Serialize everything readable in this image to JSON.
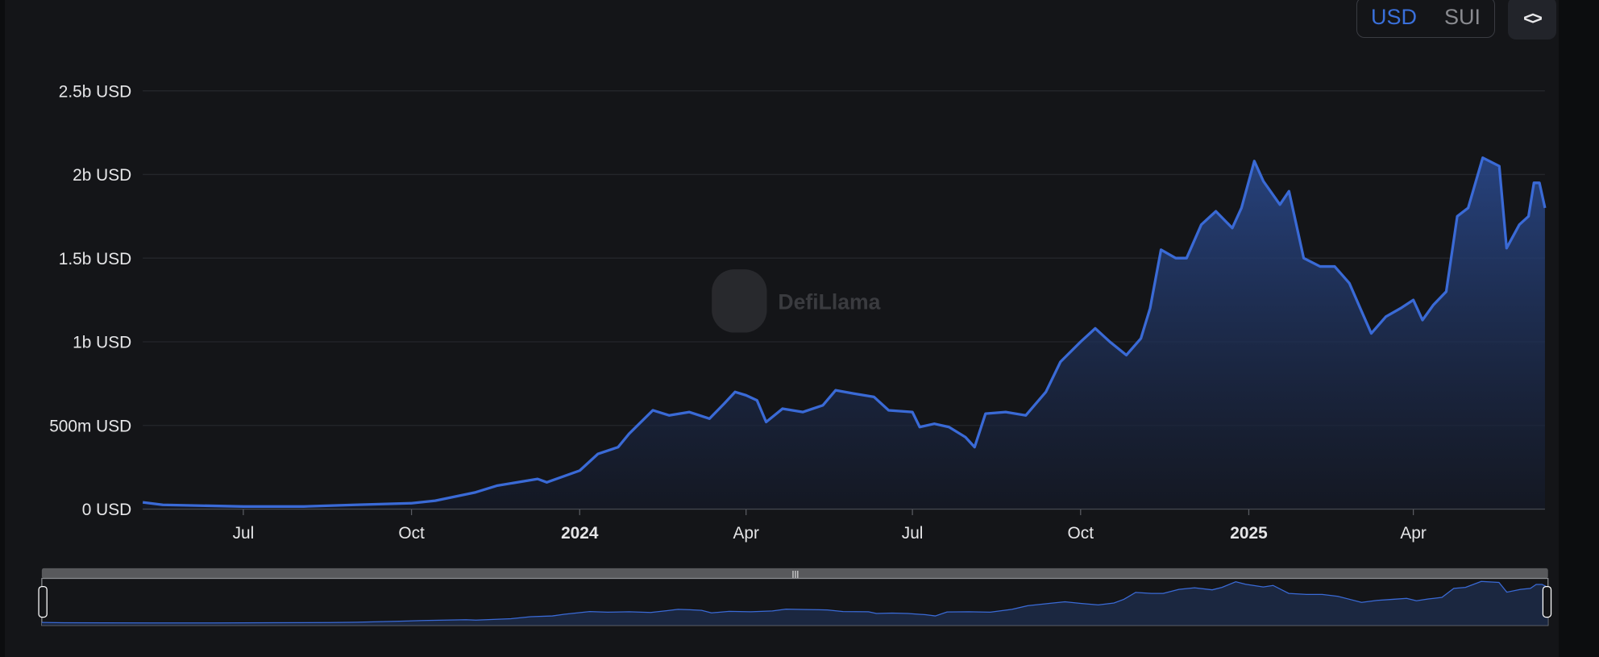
{
  "currency_toggle": {
    "options": [
      "USD",
      "SUI"
    ],
    "selected": "USD"
  },
  "embed_button": {
    "icon": "code-icon",
    "label": "<>"
  },
  "watermark": "DefiLlama",
  "colors": {
    "line": "#3a6ad6",
    "background": "#141518",
    "accent": "#3a70db"
  },
  "chart_data": {
    "type": "area",
    "title": "",
    "xlabel": "",
    "ylabel": "",
    "y_unit": "USD",
    "ylim": [
      0,
      2500000000
    ],
    "y_ticks": [
      {
        "value": 0,
        "label": "0 USD"
      },
      {
        "value": 500000000,
        "label": "500m USD"
      },
      {
        "value": 1000000000,
        "label": "1b USD"
      },
      {
        "value": 1500000000,
        "label": "1.5b USD"
      },
      {
        "value": 2000000000,
        "label": "2b USD"
      },
      {
        "value": 2500000000,
        "label": "2.5b USD"
      }
    ],
    "xlim": [
      "2023-05-07",
      "2025-06-12"
    ],
    "x_ticks": [
      {
        "date": "2023-07-01",
        "label": "Jul",
        "bold": false
      },
      {
        "date": "2023-10-01",
        "label": "Oct",
        "bold": false
      },
      {
        "date": "2024-01-01",
        "label": "2024",
        "bold": true
      },
      {
        "date": "2024-04-01",
        "label": "Apr",
        "bold": false
      },
      {
        "date": "2024-07-01",
        "label": "Jul",
        "bold": false
      },
      {
        "date": "2024-10-01",
        "label": "Oct",
        "bold": false
      },
      {
        "date": "2025-01-01",
        "label": "2025",
        "bold": true
      },
      {
        "date": "2025-04-01",
        "label": "Apr",
        "bold": false
      }
    ],
    "grid": true,
    "series": [
      {
        "x": [
          "2023-05-07",
          "2023-05-18",
          "2023-07-01",
          "2023-08-03",
          "2023-08-31",
          "2023-10-01",
          "2023-10-14",
          "2023-11-05",
          "2023-11-17",
          "2023-12-09",
          "2023-12-14",
          "2024-01-01",
          "2024-01-11",
          "2024-01-22",
          "2024-01-28",
          "2024-02-10",
          "2024-02-19",
          "2024-03-01",
          "2024-03-12",
          "2024-03-20",
          "2024-03-26",
          "2024-04-01",
          "2024-04-07",
          "2024-04-12",
          "2024-04-21",
          "2024-05-02",
          "2024-05-13",
          "2024-05-20",
          "2024-05-30",
          "2024-06-10",
          "2024-06-18",
          "2024-07-01",
          "2024-07-05",
          "2024-07-13",
          "2024-07-21",
          "2024-07-30",
          "2024-08-04",
          "2024-08-10",
          "2024-08-21",
          "2024-09-01",
          "2024-09-12",
          "2024-09-20",
          "2024-10-01",
          "2024-10-09",
          "2024-10-17",
          "2024-10-26",
          "2024-11-03",
          "2024-11-08",
          "2024-11-14",
          "2024-11-22",
          "2024-11-28",
          "2024-12-06",
          "2024-12-14",
          "2024-12-23",
          "2024-12-28",
          "2025-01-04",
          "2025-01-09",
          "2025-01-18",
          "2025-01-23",
          "2025-01-31",
          "2025-02-09",
          "2025-02-17",
          "2025-02-25",
          "2025-03-03",
          "2025-03-09",
          "2025-03-17",
          "2025-03-25",
          "2025-04-01",
          "2025-04-06",
          "2025-04-12",
          "2025-04-19",
          "2025-04-25",
          "2025-05-01",
          "2025-05-09",
          "2025-05-18",
          "2025-05-22",
          "2025-05-29",
          "2025-06-03",
          "2025-06-06",
          "2025-06-09",
          "2025-06-12"
        ],
        "y": [
          40,
          25,
          15,
          15,
          25,
          35,
          50,
          100,
          140,
          180,
          160,
          230,
          330,
          370,
          450,
          590,
          560,
          580,
          540,
          630,
          700,
          680,
          650,
          520,
          600,
          580,
          620,
          710,
          690,
          670,
          590,
          580,
          490,
          510,
          490,
          430,
          370,
          570,
          580,
          560,
          700,
          880,
          1000,
          1080,
          1000,
          920,
          1020,
          1200,
          1550,
          1500,
          1500,
          1700,
          1780,
          1680,
          1800,
          2080,
          1960,
          1820,
          1900,
          1500,
          1450,
          1450,
          1350,
          1200,
          1050,
          1150,
          1200,
          1250,
          1130,
          1220,
          1300,
          1750,
          1800,
          2100,
          2050,
          1560,
          1700,
          1750,
          1950,
          1950,
          1800
        ],
        "y_scale": "millions USD"
      }
    ]
  }
}
